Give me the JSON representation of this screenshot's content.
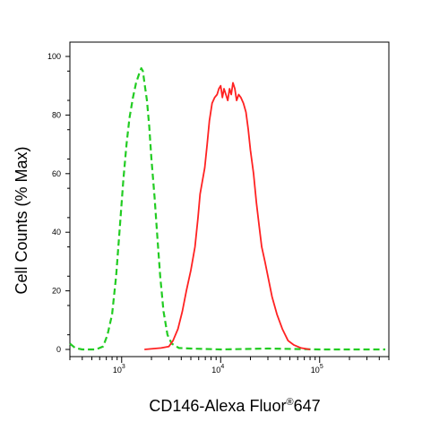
{
  "chart_data": {
    "type": "line",
    "title": "",
    "xlabel": "CD146-Alexa Fluor",
    "xlabel_mark": "®",
    "xlabel_suffix": "647",
    "ylabel": "Cell Counts (% Max)",
    "x_scale": "log",
    "xlim": [
      300,
      500000
    ],
    "ylim": [
      0,
      105
    ],
    "y_ticks": [
      0,
      20,
      40,
      60,
      80,
      100
    ],
    "y_tick_labels": [
      "0",
      "20",
      "40",
      "60",
      "80",
      "100"
    ],
    "x_ticks": [
      {
        "value": 1000,
        "base": "10",
        "exp": "3"
      },
      {
        "value": 10000,
        "base": "10",
        "exp": "4"
      },
      {
        "value": 100000,
        "base": "10",
        "exp": "5"
      }
    ],
    "grid": false,
    "series": [
      {
        "color": "#22cc22",
        "dash": "dashed",
        "points": [
          [
            300,
            2
          ],
          [
            340,
            0.5
          ],
          [
            400,
            0
          ],
          [
            550,
            0
          ],
          [
            650,
            1
          ],
          [
            720,
            5
          ],
          [
            800,
            12
          ],
          [
            880,
            25
          ],
          [
            960,
            42
          ],
          [
            1040,
            58
          ],
          [
            1120,
            70
          ],
          [
            1200,
            79
          ],
          [
            1300,
            86
          ],
          [
            1400,
            91
          ],
          [
            1500,
            94
          ],
          [
            1580,
            96
          ],
          [
            1640,
            95
          ],
          [
            1700,
            91
          ],
          [
            1800,
            85
          ],
          [
            1900,
            76
          ],
          [
            2000,
            65
          ],
          [
            2150,
            52
          ],
          [
            2300,
            38
          ],
          [
            2450,
            25
          ],
          [
            2650,
            13
          ],
          [
            2900,
            5
          ],
          [
            3200,
            2
          ],
          [
            3800,
            0.5
          ],
          [
            5000,
            0.3
          ],
          [
            10000,
            0
          ],
          [
            30000,
            0.3
          ],
          [
            100000,
            0
          ],
          [
            460000,
            0
          ]
        ]
      },
      {
        "color": "#ff2222",
        "dash": "solid",
        "points": [
          [
            1700,
            0
          ],
          [
            2500,
            0.5
          ],
          [
            3000,
            1
          ],
          [
            3300,
            3
          ],
          [
            3700,
            7
          ],
          [
            4100,
            13
          ],
          [
            4500,
            20
          ],
          [
            5000,
            27
          ],
          [
            5500,
            35
          ],
          [
            5900,
            45
          ],
          [
            6200,
            53
          ],
          [
            6500,
            57
          ],
          [
            6900,
            62
          ],
          [
            7300,
            70
          ],
          [
            7700,
            78
          ],
          [
            8200,
            84
          ],
          [
            8700,
            86
          ],
          [
            9200,
            87
          ],
          [
            9600,
            89
          ],
          [
            10000,
            90
          ],
          [
            10400,
            86
          ],
          [
            10800,
            89
          ],
          [
            11300,
            87
          ],
          [
            11800,
            85
          ],
          [
            12300,
            89
          ],
          [
            12800,
            87
          ],
          [
            13300,
            91
          ],
          [
            13900,
            89
          ],
          [
            14500,
            85
          ],
          [
            15200,
            87
          ],
          [
            16000,
            86
          ],
          [
            17000,
            84
          ],
          [
            18000,
            81
          ],
          [
            19000,
            75
          ],
          [
            20000,
            68
          ],
          [
            21500,
            60
          ],
          [
            23000,
            50
          ],
          [
            24500,
            42
          ],
          [
            26000,
            35
          ],
          [
            28000,
            30
          ],
          [
            30000,
            25
          ],
          [
            33000,
            18
          ],
          [
            37000,
            12
          ],
          [
            42000,
            7
          ],
          [
            48000,
            3
          ],
          [
            55000,
            1.5
          ],
          [
            65000,
            0.5
          ],
          [
            80000,
            0
          ]
        ]
      }
    ]
  }
}
